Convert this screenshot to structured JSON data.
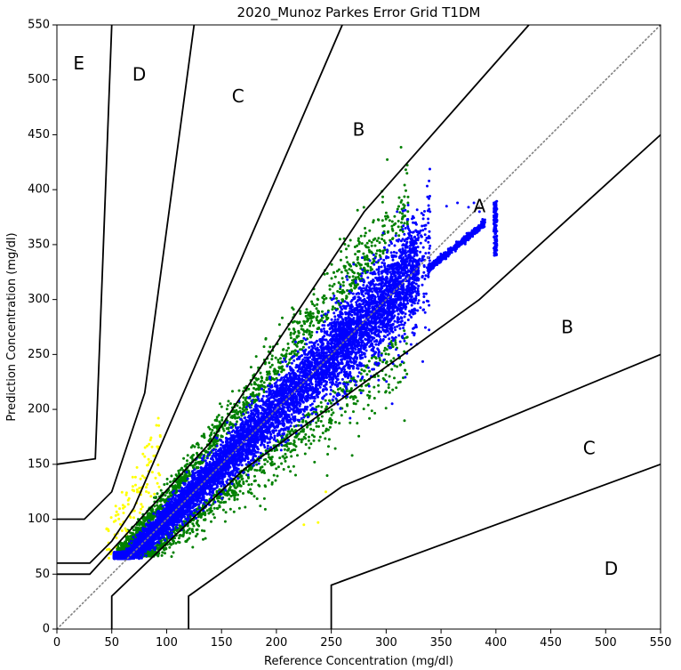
{
  "chart_data": {
    "type": "scatter",
    "title": "2020_Munoz Parkes Error Grid T1DM",
    "xlabel": "Reference Concentration (mg/dl)",
    "ylabel": "Prediction Concentration (mg/dl)",
    "xlim": [
      0,
      550
    ],
    "ylim": [
      0,
      550
    ],
    "x_ticks": [
      0,
      50,
      100,
      150,
      200,
      250,
      300,
      350,
      400,
      450,
      500,
      550
    ],
    "y_ticks": [
      0,
      50,
      100,
      150,
      200,
      250,
      300,
      350,
      400,
      450,
      500,
      550
    ],
    "grid": false,
    "identity_line": {
      "from": [
        0,
        0
      ],
      "to": [
        550,
        550
      ],
      "style": "dotted",
      "color": "#808080"
    },
    "zone_boundaries": [
      {
        "points": [
          [
            0,
            50
          ],
          [
            30,
            50
          ],
          [
            140,
            170
          ],
          [
            280,
            380
          ],
          [
            430,
            550
          ]
        ]
      },
      {
        "points": [
          [
            50,
            0
          ],
          [
            50,
            30
          ],
          [
            170,
            145
          ],
          [
            385,
            300
          ],
          [
            550,
            450
          ]
        ]
      },
      {
        "points": [
          [
            0,
            60
          ],
          [
            30,
            60
          ],
          [
            50,
            80
          ],
          [
            70,
            110
          ],
          [
            260,
            550
          ]
        ]
      },
      {
        "points": [
          [
            120,
            0
          ],
          [
            120,
            30
          ],
          [
            260,
            130
          ],
          [
            550,
            250
          ]
        ]
      },
      {
        "points": [
          [
            0,
            100
          ],
          [
            25,
            100
          ],
          [
            50,
            125
          ],
          [
            80,
            215
          ],
          [
            125,
            550
          ]
        ]
      },
      {
        "points": [
          [
            250,
            0
          ],
          [
            250,
            40
          ],
          [
            550,
            150
          ]
        ]
      },
      {
        "points": [
          [
            0,
            150
          ],
          [
            35,
            155
          ],
          [
            50,
            550
          ]
        ]
      }
    ],
    "zone_labels": [
      {
        "text": "A",
        "x": 385,
        "y": 385
      },
      {
        "text": "B",
        "x": 275,
        "y": 455
      },
      {
        "text": "B",
        "x": 465,
        "y": 275
      },
      {
        "text": "C",
        "x": 165,
        "y": 485
      },
      {
        "text": "C",
        "x": 485,
        "y": 165
      },
      {
        "text": "D",
        "x": 75,
        "y": 505
      },
      {
        "text": "D",
        "x": 505,
        "y": 55
      },
      {
        "text": "E",
        "x": 20,
        "y": 515
      }
    ],
    "series": [
      {
        "color": "#0000ff",
        "marker_size": 3,
        "count": 9000,
        "distribution": "dense band along the diagonal; reference 50–400 mg/dl; prediction ≈ reference with spread ±15%, plus a tight streak from (340,330) to (390,370) and a vertical cluster at x≈400 (y 340–390)",
        "sample_points": [
          [
            60,
            68
          ],
          [
            80,
            82
          ],
          [
            100,
            98
          ],
          [
            125,
            130
          ],
          [
            150,
            150
          ],
          [
            175,
            178
          ],
          [
            200,
            195
          ],
          [
            225,
            230
          ],
          [
            250,
            245
          ],
          [
            275,
            270
          ],
          [
            300,
            295
          ],
          [
            320,
            330
          ],
          [
            350,
            340
          ],
          [
            370,
            355
          ],
          [
            390,
            370
          ],
          [
            400,
            385
          ],
          [
            400,
            350
          ],
          [
            280,
            210
          ],
          [
            230,
            300
          ],
          [
            330,
            280
          ]
        ]
      },
      {
        "color": "#008000",
        "marker_size": 3,
        "count": 2500,
        "distribution": "surrounds the blue band; reference 55–320 mg/dl; prediction deviating 15–35% above or below reference",
        "sample_points": [
          [
            90,
            130
          ],
          [
            110,
            160
          ],
          [
            130,
            190
          ],
          [
            160,
            230
          ],
          [
            190,
            270
          ],
          [
            240,
            330
          ],
          [
            100,
            75
          ],
          [
            130,
            95
          ],
          [
            170,
            130
          ],
          [
            210,
            160
          ],
          [
            260,
            200
          ],
          [
            300,
            220
          ]
        ]
      },
      {
        "color": "#ffff00",
        "marker_size": 3,
        "count": 120,
        "distribution": "small cluster; reference 45–95 mg/dl; prediction 70–205 mg/dl, plus two stray points near (225,95) and (245,125)",
        "sample_points": [
          [
            55,
            90
          ],
          [
            65,
            120
          ],
          [
            75,
            140
          ],
          [
            85,
            175
          ],
          [
            95,
            205
          ],
          [
            225,
            95
          ],
          [
            245,
            125
          ]
        ]
      }
    ]
  }
}
